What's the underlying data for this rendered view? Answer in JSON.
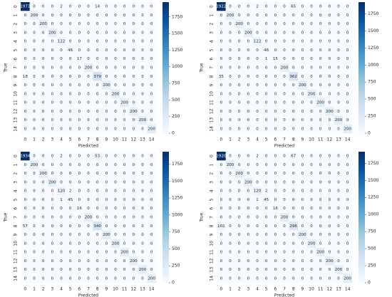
{
  "chart_data": [
    {
      "type": "heatmap",
      "xlabel": "Predicted",
      "ylabel": "True",
      "cmap": "Blues",
      "zlim": [
        0,
        1973
      ],
      "zticks": [
        0,
        250,
        500,
        750,
        1000,
        1250,
        1500,
        1750
      ],
      "categories": [
        "0",
        "1",
        "2",
        "3",
        "4",
        "5",
        "6",
        "7",
        "8",
        "9",
        "10",
        "11",
        "12",
        "13",
        "14"
      ],
      "z": [
        [
          1973,
          0,
          0,
          0,
          2,
          0,
          0,
          0,
          14,
          0,
          0,
          0,
          0,
          0,
          0
        ],
        [
          0,
          200,
          0,
          0,
          0,
          0,
          0,
          0,
          0,
          0,
          0,
          0,
          0,
          0,
          0
        ],
        [
          0,
          0,
          200,
          0,
          0,
          0,
          0,
          0,
          0,
          0,
          0,
          0,
          0,
          0,
          0
        ],
        [
          0,
          0,
          0,
          200,
          0,
          0,
          0,
          0,
          0,
          0,
          0,
          0,
          0,
          0,
          0
        ],
        [
          0,
          0,
          0,
          0,
          122,
          0,
          0,
          0,
          0,
          0,
          0,
          0,
          0,
          0,
          0
        ],
        [
          0,
          0,
          0,
          0,
          0,
          46,
          0,
          0,
          0,
          0,
          0,
          0,
          0,
          0,
          0
        ],
        [
          0,
          0,
          0,
          0,
          0,
          0,
          17,
          0,
          0,
          0,
          0,
          0,
          0,
          0,
          0
        ],
        [
          0,
          0,
          0,
          0,
          0,
          0,
          0,
          200,
          0,
          0,
          0,
          0,
          0,
          0,
          0
        ],
        [
          18,
          0,
          0,
          0,
          0,
          0,
          0,
          0,
          379,
          0,
          0,
          0,
          0,
          0,
          0
        ],
        [
          0,
          0,
          0,
          0,
          0,
          0,
          0,
          0,
          0,
          200,
          0,
          0,
          0,
          0,
          0
        ],
        [
          0,
          0,
          0,
          0,
          0,
          0,
          0,
          0,
          0,
          0,
          200,
          0,
          0,
          0,
          0
        ],
        [
          0,
          0,
          0,
          0,
          0,
          0,
          0,
          0,
          0,
          0,
          0,
          200,
          0,
          0,
          0
        ],
        [
          0,
          0,
          0,
          0,
          0,
          0,
          0,
          0,
          0,
          0,
          0,
          0,
          200,
          0,
          0
        ],
        [
          0,
          0,
          0,
          0,
          0,
          0,
          0,
          0,
          0,
          0,
          0,
          0,
          0,
          200,
          0
        ],
        [
          0,
          0,
          0,
          0,
          0,
          0,
          0,
          0,
          0,
          0,
          0,
          0,
          0,
          0,
          200
        ]
      ]
    },
    {
      "type": "heatmap",
      "xlabel": "Predicted",
      "ylabel": "True",
      "cmap": "Blues",
      "zlim": [
        0,
        1922
      ],
      "zticks": [
        0,
        250,
        500,
        750,
        1000,
        1250,
        1500,
        1750
      ],
      "categories": [
        "0",
        "1",
        "2",
        "3",
        "4",
        "5",
        "6",
        "7",
        "8",
        "9",
        "10",
        "11",
        "12",
        "13",
        "14"
      ],
      "z": [
        [
          1922,
          0,
          0,
          0,
          2,
          0,
          0,
          0,
          65,
          0,
          0,
          0,
          0,
          0,
          0
        ],
        [
          0,
          200,
          0,
          0,
          0,
          0,
          0,
          0,
          0,
          0,
          0,
          0,
          0,
          0,
          0
        ],
        [
          0,
          0,
          200,
          0,
          0,
          0,
          0,
          0,
          0,
          0,
          0,
          0,
          0,
          0,
          0
        ],
        [
          0,
          0,
          0,
          200,
          0,
          0,
          0,
          0,
          0,
          0,
          0,
          0,
          0,
          0,
          0
        ],
        [
          0,
          0,
          0,
          0,
          122,
          0,
          0,
          0,
          0,
          0,
          0,
          0,
          0,
          0,
          0
        ],
        [
          0,
          0,
          0,
          0,
          0,
          46,
          0,
          0,
          0,
          0,
          0,
          0,
          0,
          0,
          0
        ],
        [
          0,
          0,
          0,
          0,
          0,
          1,
          15,
          0,
          0,
          0,
          0,
          0,
          0,
          0,
          0
        ],
        [
          0,
          0,
          0,
          0,
          0,
          0,
          0,
          200,
          0,
          0,
          0,
          0,
          0,
          0,
          0
        ],
        [
          35,
          0,
          0,
          0,
          0,
          0,
          0,
          0,
          362,
          0,
          0,
          0,
          0,
          0,
          0
        ],
        [
          0,
          0,
          0,
          0,
          0,
          0,
          0,
          0,
          0,
          200,
          0,
          0,
          0,
          0,
          0
        ],
        [
          0,
          0,
          0,
          0,
          0,
          0,
          0,
          0,
          0,
          0,
          200,
          0,
          0,
          0,
          0
        ],
        [
          0,
          0,
          0,
          0,
          0,
          0,
          0,
          0,
          0,
          0,
          0,
          200,
          0,
          0,
          0
        ],
        [
          0,
          0,
          0,
          0,
          0,
          0,
          0,
          0,
          0,
          0,
          0,
          0,
          200,
          0,
          0
        ],
        [
          0,
          0,
          0,
          0,
          0,
          0,
          0,
          0,
          0,
          0,
          0,
          0,
          0,
          200,
          0
        ],
        [
          0,
          0,
          0,
          0,
          0,
          0,
          0,
          0,
          0,
          0,
          0,
          0,
          0,
          0,
          200
        ]
      ]
    },
    {
      "type": "heatmap",
      "xlabel": "Predicted",
      "ylabel": "True",
      "cmap": "Blues",
      "zlim": [
        0,
        1934
      ],
      "zticks": [
        0,
        250,
        500,
        750,
        1000,
        1250,
        1500,
        1750
      ],
      "categories": [
        "0",
        "1",
        "2",
        "3",
        "4",
        "5",
        "6",
        "7",
        "8",
        "9",
        "10",
        "11",
        "12",
        "13",
        "14"
      ],
      "z": [
        [
          1934,
          0,
          0,
          0,
          2,
          0,
          0,
          0,
          53,
          0,
          0,
          0,
          0,
          0,
          0
        ],
        [
          0,
          200,
          0,
          0,
          0,
          0,
          0,
          0,
          0,
          0,
          0,
          0,
          0,
          0,
          0
        ],
        [
          0,
          0,
          200,
          0,
          0,
          0,
          0,
          0,
          0,
          0,
          0,
          0,
          0,
          0,
          0
        ],
        [
          0,
          0,
          0,
          200,
          0,
          0,
          0,
          0,
          0,
          0,
          0,
          0,
          0,
          0,
          0
        ],
        [
          0,
          0,
          0,
          0,
          120,
          2,
          0,
          0,
          0,
          0,
          0,
          0,
          0,
          0,
          0
        ],
        [
          0,
          0,
          0,
          0,
          1,
          45,
          0,
          0,
          0,
          0,
          0,
          0,
          0,
          0,
          0
        ],
        [
          0,
          0,
          0,
          0,
          0,
          0,
          16,
          0,
          0,
          0,
          0,
          0,
          0,
          0,
          0
        ],
        [
          0,
          0,
          0,
          0,
          0,
          0,
          0,
          200,
          0,
          0,
          0,
          0,
          0,
          0,
          0
        ],
        [
          57,
          0,
          0,
          0,
          0,
          0,
          0,
          0,
          340,
          0,
          0,
          0,
          0,
          0,
          0
        ],
        [
          0,
          0,
          0,
          0,
          0,
          0,
          0,
          0,
          0,
          200,
          0,
          0,
          0,
          0,
          0
        ],
        [
          0,
          0,
          0,
          0,
          0,
          0,
          0,
          0,
          0,
          0,
          200,
          0,
          0,
          0,
          0
        ],
        [
          0,
          0,
          0,
          0,
          0,
          0,
          0,
          0,
          0,
          0,
          0,
          200,
          0,
          0,
          0
        ],
        [
          0,
          0,
          0,
          0,
          0,
          0,
          0,
          0,
          0,
          0,
          0,
          0,
          200,
          0,
          0
        ],
        [
          0,
          0,
          0,
          0,
          0,
          0,
          0,
          0,
          0,
          0,
          0,
          0,
          0,
          200,
          0
        ],
        [
          0,
          0,
          0,
          0,
          0,
          0,
          0,
          0,
          0,
          0,
          0,
          0,
          0,
          0,
          200
        ]
      ]
    },
    {
      "type": "heatmap",
      "xlabel": "Predicted",
      "ylabel": "True",
      "cmap": "Blues",
      "zlim": [
        0,
        1920
      ],
      "zticks": [
        0,
        250,
        500,
        750,
        1000,
        1250,
        1500,
        1750
      ],
      "categories": [
        "0",
        "1",
        "2",
        "3",
        "4",
        "5",
        "6",
        "7",
        "8",
        "9",
        "10",
        "11",
        "12",
        "13",
        "14"
      ],
      "z": [
        [
          1920,
          0,
          0,
          0,
          2,
          0,
          0,
          0,
          67,
          0,
          0,
          0,
          0,
          0,
          0
        ],
        [
          0,
          200,
          0,
          0,
          0,
          0,
          0,
          0,
          0,
          0,
          0,
          0,
          0,
          0,
          0
        ],
        [
          0,
          0,
          200,
          0,
          0,
          0,
          0,
          0,
          0,
          0,
          0,
          0,
          0,
          0,
          0
        ],
        [
          0,
          0,
          0,
          200,
          0,
          0,
          0,
          0,
          0,
          0,
          0,
          0,
          0,
          0,
          0
        ],
        [
          0,
          0,
          0,
          0,
          120,
          2,
          0,
          0,
          0,
          0,
          0,
          0,
          0,
          0,
          0
        ],
        [
          0,
          0,
          0,
          0,
          1,
          45,
          0,
          0,
          0,
          0,
          0,
          0,
          0,
          0,
          0
        ],
        [
          0,
          0,
          0,
          0,
          0,
          0,
          16,
          0,
          0,
          0,
          0,
          0,
          0,
          0,
          0
        ],
        [
          0,
          0,
          0,
          0,
          0,
          0,
          0,
          200,
          0,
          0,
          0,
          0,
          0,
          0,
          0
        ],
        [
          101,
          0,
          0,
          0,
          0,
          0,
          0,
          0,
          296,
          0,
          0,
          0,
          0,
          0,
          0
        ],
        [
          0,
          0,
          0,
          0,
          0,
          0,
          0,
          0,
          0,
          200,
          0,
          0,
          0,
          0,
          0
        ],
        [
          0,
          0,
          0,
          0,
          0,
          0,
          0,
          0,
          0,
          0,
          200,
          0,
          0,
          0,
          0
        ],
        [
          0,
          0,
          0,
          0,
          0,
          0,
          0,
          0,
          0,
          0,
          0,
          200,
          0,
          0,
          0
        ],
        [
          0,
          0,
          0,
          0,
          0,
          0,
          0,
          0,
          0,
          0,
          0,
          0,
          200,
          0,
          0
        ],
        [
          0,
          0,
          0,
          0,
          0,
          0,
          0,
          0,
          0,
          0,
          0,
          0,
          0,
          200,
          0
        ],
        [
          0,
          0,
          0,
          0,
          0,
          0,
          0,
          0,
          0,
          0,
          0,
          0,
          0,
          0,
          200
        ]
      ]
    }
  ]
}
